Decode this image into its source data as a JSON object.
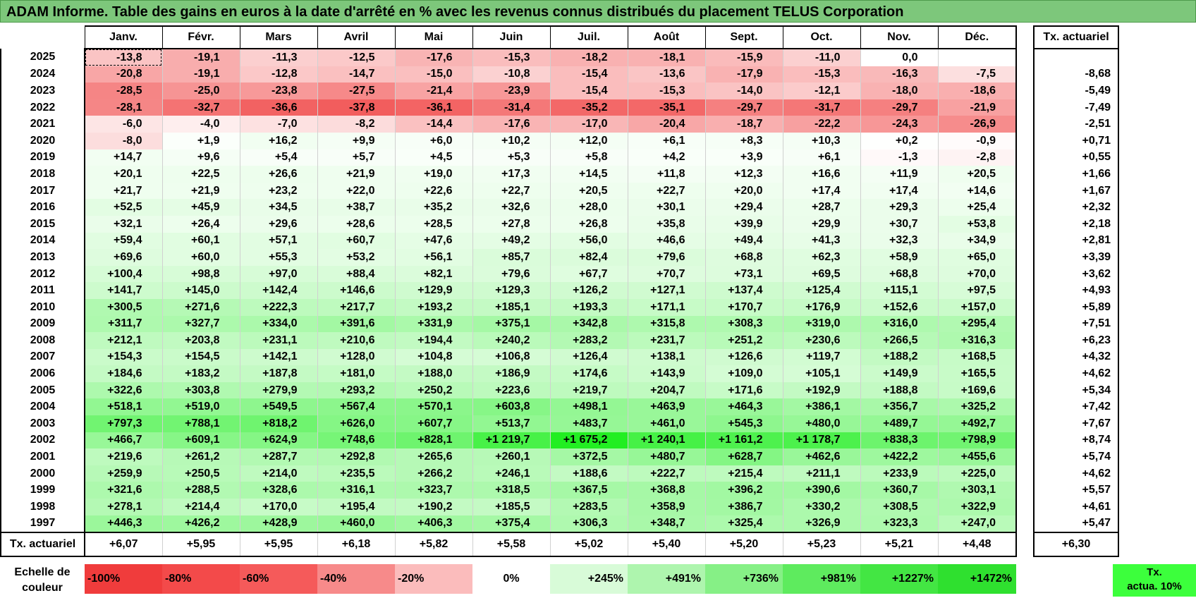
{
  "title": "ADAM Informe. Table des gains en euros à la date d'arrêté en % avec les revenus connus distribués du placement TELUS Corporation",
  "months": [
    "Janv.",
    "Févr.",
    "Mars",
    "Avril",
    "Mai",
    "Juin",
    "Juil.",
    "Août",
    "Sept.",
    "Oct.",
    "Nov.",
    "Déc."
  ],
  "actuarial_header": "Tx. actuariel",
  "rows": [
    {
      "year": "2025",
      "values": [
        "-13,8",
        "-19,1",
        "-11,3",
        "-12,5",
        "-17,6",
        "-15,3",
        "-18,2",
        "-18,1",
        "-15,9",
        "-11,0",
        "0,0",
        ""
      ],
      "actuarial": ""
    },
    {
      "year": "2024",
      "values": [
        "-20,8",
        "-19,1",
        "-12,8",
        "-14,7",
        "-15,0",
        "-10,8",
        "-15,4",
        "-13,6",
        "-17,9",
        "-15,3",
        "-16,3",
        "-7,5"
      ],
      "actuarial": "-8,68"
    },
    {
      "year": "2023",
      "values": [
        "-28,5",
        "-25,0",
        "-23,8",
        "-27,5",
        "-21,4",
        "-23,9",
        "-15,4",
        "-15,3",
        "-14,0",
        "-12,1",
        "-18,0",
        "-18,6"
      ],
      "actuarial": "-5,49"
    },
    {
      "year": "2022",
      "values": [
        "-28,1",
        "-32,7",
        "-36,6",
        "-37,8",
        "-36,1",
        "-31,4",
        "-35,2",
        "-35,1",
        "-29,7",
        "-31,7",
        "-29,7",
        "-21,9"
      ],
      "actuarial": "-7,49"
    },
    {
      "year": "2021",
      "values": [
        "-6,0",
        "-4,0",
        "-7,0",
        "-8,2",
        "-14,4",
        "-17,6",
        "-17,0",
        "-20,4",
        "-18,7",
        "-22,2",
        "-24,3",
        "-26,9"
      ],
      "actuarial": "-2,51"
    },
    {
      "year": "2020",
      "values": [
        "-8,0",
        "+1,9",
        "+16,2",
        "+9,9",
        "+6,0",
        "+10,2",
        "+12,0",
        "+6,1",
        "+8,3",
        "+10,3",
        "+0,2",
        "-0,9"
      ],
      "actuarial": "+0,71"
    },
    {
      "year": "2019",
      "values": [
        "+14,7",
        "+9,6",
        "+5,4",
        "+5,7",
        "+4,5",
        "+5,3",
        "+5,8",
        "+4,2",
        "+3,9",
        "+6,1",
        "-1,3",
        "-2,8"
      ],
      "actuarial": "+0,55"
    },
    {
      "year": "2018",
      "values": [
        "+20,1",
        "+22,5",
        "+26,6",
        "+21,9",
        "+19,0",
        "+17,3",
        "+14,5",
        "+11,8",
        "+12,3",
        "+16,6",
        "+11,9",
        "+20,5"
      ],
      "actuarial": "+1,66"
    },
    {
      "year": "2017",
      "values": [
        "+21,7",
        "+21,9",
        "+23,2",
        "+22,0",
        "+22,6",
        "+22,7",
        "+20,5",
        "+22,7",
        "+20,0",
        "+17,4",
        "+17,4",
        "+14,6"
      ],
      "actuarial": "+1,67"
    },
    {
      "year": "2016",
      "values": [
        "+52,5",
        "+45,9",
        "+34,5",
        "+38,7",
        "+35,2",
        "+32,6",
        "+28,0",
        "+30,1",
        "+29,4",
        "+28,7",
        "+29,3",
        "+25,4"
      ],
      "actuarial": "+2,32"
    },
    {
      "year": "2015",
      "values": [
        "+32,1",
        "+26,4",
        "+29,6",
        "+28,6",
        "+28,5",
        "+27,8",
        "+26,8",
        "+35,8",
        "+39,9",
        "+29,9",
        "+30,7",
        "+53,8"
      ],
      "actuarial": "+2,18"
    },
    {
      "year": "2014",
      "values": [
        "+59,4",
        "+60,1",
        "+57,1",
        "+60,7",
        "+47,6",
        "+49,2",
        "+56,0",
        "+46,6",
        "+49,4",
        "+41,3",
        "+32,3",
        "+34,9"
      ],
      "actuarial": "+2,81"
    },
    {
      "year": "2013",
      "values": [
        "+69,6",
        "+60,0",
        "+55,3",
        "+53,2",
        "+56,1",
        "+85,7",
        "+82,4",
        "+79,6",
        "+68,8",
        "+62,3",
        "+58,9",
        "+65,0"
      ],
      "actuarial": "+3,39"
    },
    {
      "year": "2012",
      "values": [
        "+100,4",
        "+98,8",
        "+97,0",
        "+88,4",
        "+82,1",
        "+79,6",
        "+67,7",
        "+70,7",
        "+73,1",
        "+69,5",
        "+68,8",
        "+70,0"
      ],
      "actuarial": "+3,62"
    },
    {
      "year": "2011",
      "values": [
        "+141,7",
        "+145,0",
        "+142,4",
        "+146,6",
        "+129,9",
        "+129,3",
        "+126,2",
        "+127,1",
        "+137,4",
        "+125,4",
        "+115,1",
        "+97,5"
      ],
      "actuarial": "+4,93"
    },
    {
      "year": "2010",
      "values": [
        "+300,5",
        "+271,6",
        "+222,3",
        "+217,7",
        "+193,2",
        "+185,1",
        "+193,3",
        "+171,1",
        "+170,7",
        "+176,9",
        "+152,6",
        "+157,0"
      ],
      "actuarial": "+5,89"
    },
    {
      "year": "2009",
      "values": [
        "+311,7",
        "+327,7",
        "+334,0",
        "+391,6",
        "+331,9",
        "+375,1",
        "+342,8",
        "+315,8",
        "+308,3",
        "+319,0",
        "+316,0",
        "+295,4"
      ],
      "actuarial": "+7,51"
    },
    {
      "year": "2008",
      "values": [
        "+212,1",
        "+203,8",
        "+231,1",
        "+210,6",
        "+194,4",
        "+240,2",
        "+283,2",
        "+231,7",
        "+251,2",
        "+230,6",
        "+266,5",
        "+316,3"
      ],
      "actuarial": "+6,23"
    },
    {
      "year": "2007",
      "values": [
        "+154,3",
        "+154,5",
        "+142,1",
        "+128,0",
        "+104,8",
        "+106,8",
        "+126,4",
        "+138,1",
        "+126,6",
        "+119,7",
        "+188,2",
        "+168,5"
      ],
      "actuarial": "+4,32"
    },
    {
      "year": "2006",
      "values": [
        "+184,6",
        "+183,2",
        "+187,8",
        "+181,0",
        "+188,0",
        "+186,9",
        "+174,6",
        "+143,9",
        "+109,0",
        "+105,1",
        "+149,9",
        "+165,5"
      ],
      "actuarial": "+4,62"
    },
    {
      "year": "2005",
      "values": [
        "+322,6",
        "+303,8",
        "+279,9",
        "+293,2",
        "+250,2",
        "+223,6",
        "+219,7",
        "+204,7",
        "+171,6",
        "+192,9",
        "+188,8",
        "+169,6"
      ],
      "actuarial": "+5,34"
    },
    {
      "year": "2004",
      "values": [
        "+518,1",
        "+519,0",
        "+549,5",
        "+567,4",
        "+570,1",
        "+603,8",
        "+498,1",
        "+463,9",
        "+464,3",
        "+386,1",
        "+356,7",
        "+325,2"
      ],
      "actuarial": "+7,42"
    },
    {
      "year": "2003",
      "values": [
        "+797,3",
        "+788,1",
        "+818,2",
        "+626,0",
        "+607,7",
        "+513,7",
        "+483,7",
        "+461,0",
        "+545,3",
        "+480,0",
        "+489,7",
        "+492,7"
      ],
      "actuarial": "+7,67"
    },
    {
      "year": "2002",
      "values": [
        "+466,7",
        "+609,1",
        "+624,9",
        "+748,6",
        "+828,1",
        "+1 219,7",
        "+1 675,2",
        "+1 240,1",
        "+1 161,2",
        "+1 178,7",
        "+838,3",
        "+798,9"
      ],
      "actuarial": "+8,74"
    },
    {
      "year": "2001",
      "values": [
        "+219,6",
        "+261,2",
        "+287,7",
        "+292,8",
        "+265,6",
        "+260,1",
        "+372,5",
        "+480,7",
        "+628,7",
        "+462,6",
        "+422,2",
        "+455,6"
      ],
      "actuarial": "+5,74"
    },
    {
      "year": "2000",
      "values": [
        "+259,9",
        "+250,5",
        "+214,0",
        "+235,5",
        "+266,2",
        "+246,1",
        "+188,6",
        "+222,7",
        "+215,4",
        "+211,1",
        "+233,9",
        "+225,0"
      ],
      "actuarial": "+4,62"
    },
    {
      "year": "1999",
      "values": [
        "+321,6",
        "+288,5",
        "+328,6",
        "+316,1",
        "+323,7",
        "+318,5",
        "+367,5",
        "+368,8",
        "+396,2",
        "+390,6",
        "+360,7",
        "+303,1"
      ],
      "actuarial": "+5,57"
    },
    {
      "year": "1998",
      "values": [
        "+278,1",
        "+214,4",
        "+170,0",
        "+195,4",
        "+190,2",
        "+185,5",
        "+283,5",
        "+358,9",
        "+386,7",
        "+330,2",
        "+308,5",
        "+322,9"
      ],
      "actuarial": "+4,61"
    },
    {
      "year": "1997",
      "values": [
        "+446,3",
        "+426,2",
        "+428,9",
        "+460,0",
        "+406,3",
        "+375,4",
        "+306,3",
        "+348,7",
        "+325,4",
        "+326,9",
        "+323,3",
        "+247,0"
      ],
      "actuarial": "+5,47"
    }
  ],
  "footer": {
    "label": "Tx. actuariel",
    "values": [
      "+6,07",
      "+5,95",
      "+5,95",
      "+6,18",
      "+5,82",
      "+5,58",
      "+5,02",
      "+5,40",
      "+5,20",
      "+5,23",
      "+5,21",
      "+4,48"
    ],
    "actuarial": "+6,30"
  },
  "legend": {
    "label_line1": "Echelle de",
    "label_line2": "couleur",
    "scale": [
      {
        "label": "-100%",
        "color": "#f03c3c"
      },
      {
        "label": "-80%",
        "color": "#f34a4a"
      },
      {
        "label": "-60%",
        "color": "#f55a5a"
      },
      {
        "label": "-40%",
        "color": "#f78a8a"
      },
      {
        "label": "-20%",
        "color": "#fbbcbc"
      },
      {
        "label": "0%",
        "color": "#ffffff"
      },
      {
        "label": "+245%",
        "color": "#d8fbd8"
      },
      {
        "label": "+491%",
        "color": "#aef5ae"
      },
      {
        "label": "+736%",
        "color": "#86f086"
      },
      {
        "label": "+981%",
        "color": "#5eeb5e"
      },
      {
        "label": "+1227%",
        "color": "#43e643"
      },
      {
        "label": "+1472%",
        "color": "#2fe02f"
      }
    ],
    "act_line1": "Tx.",
    "act_line2": "actua. 10%",
    "act_color": "#3cff3c"
  },
  "colors": {
    "title_bg": "#7dc77b",
    "neg_max": "#f25c5c",
    "pos_max": "#22ee22"
  }
}
